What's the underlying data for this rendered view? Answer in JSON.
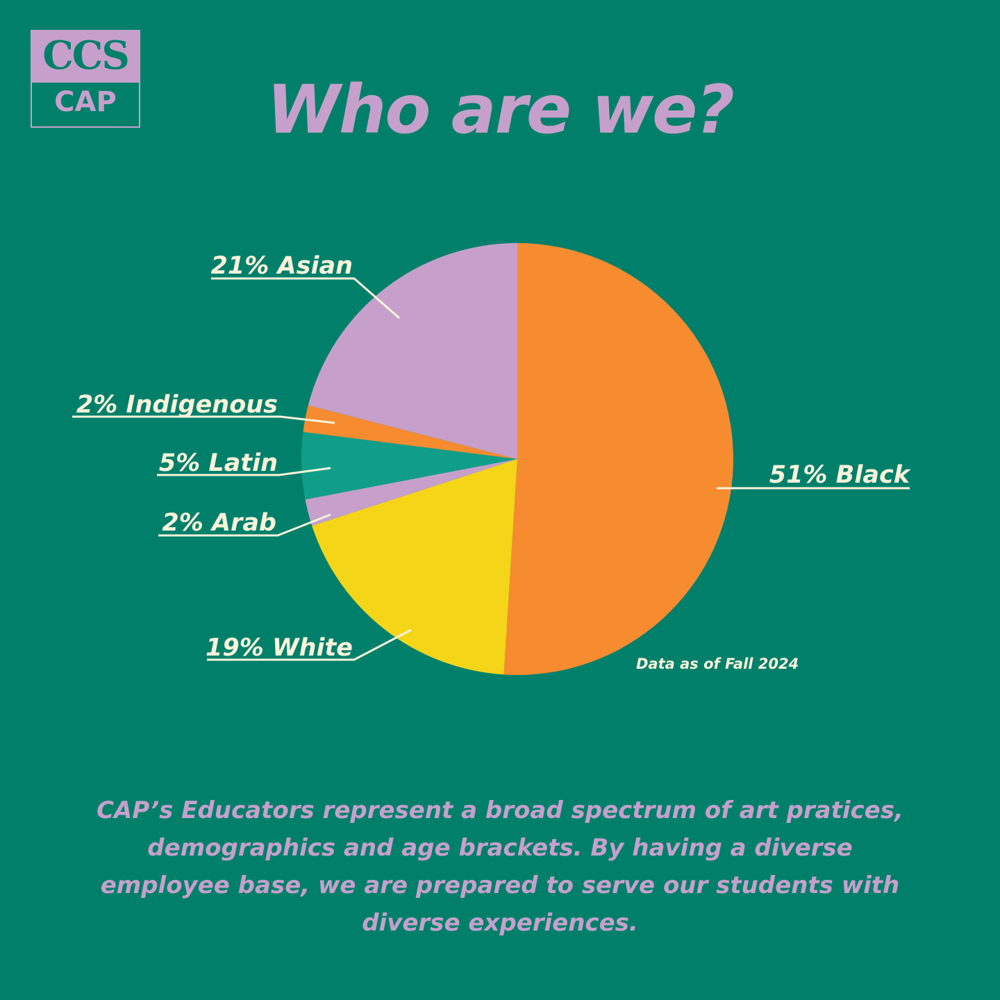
{
  "logo": {
    "top_text": "CCS",
    "bottom_text": "CAP"
  },
  "title": "Who are we?",
  "note": "Data as of Fall 2024",
  "description": "CAP’s Educators represent a broad spectrum of art pratices, demographics and age brackets. By having a diverse employee base, we are prepared to serve our students with diverse experiences.",
  "colors": {
    "background": "#00806B",
    "accent_purple": "#C6A0CB",
    "label_cream": "#FBF3DA"
  },
  "chart_data": {
    "type": "pie",
    "title": "",
    "slices": [
      {
        "name": "Black",
        "value": 51,
        "label": "51% Black",
        "color": "#F68C2F"
      },
      {
        "name": "White",
        "value": 19,
        "label": "19% White",
        "color": "#F5D518"
      },
      {
        "name": "Arab",
        "value": 2,
        "label": "2% Arab",
        "color": "#C6A0CB"
      },
      {
        "name": "Latin",
        "value": 5,
        "label": "5% Latin",
        "color": "#119E88"
      },
      {
        "name": "Indigenous",
        "value": 2,
        "label": "2% Indigenous",
        "color": "#F68C2F"
      },
      {
        "name": "Asian",
        "value": 21,
        "label": "21% Asian",
        "color": "#C6A0CB"
      }
    ]
  }
}
